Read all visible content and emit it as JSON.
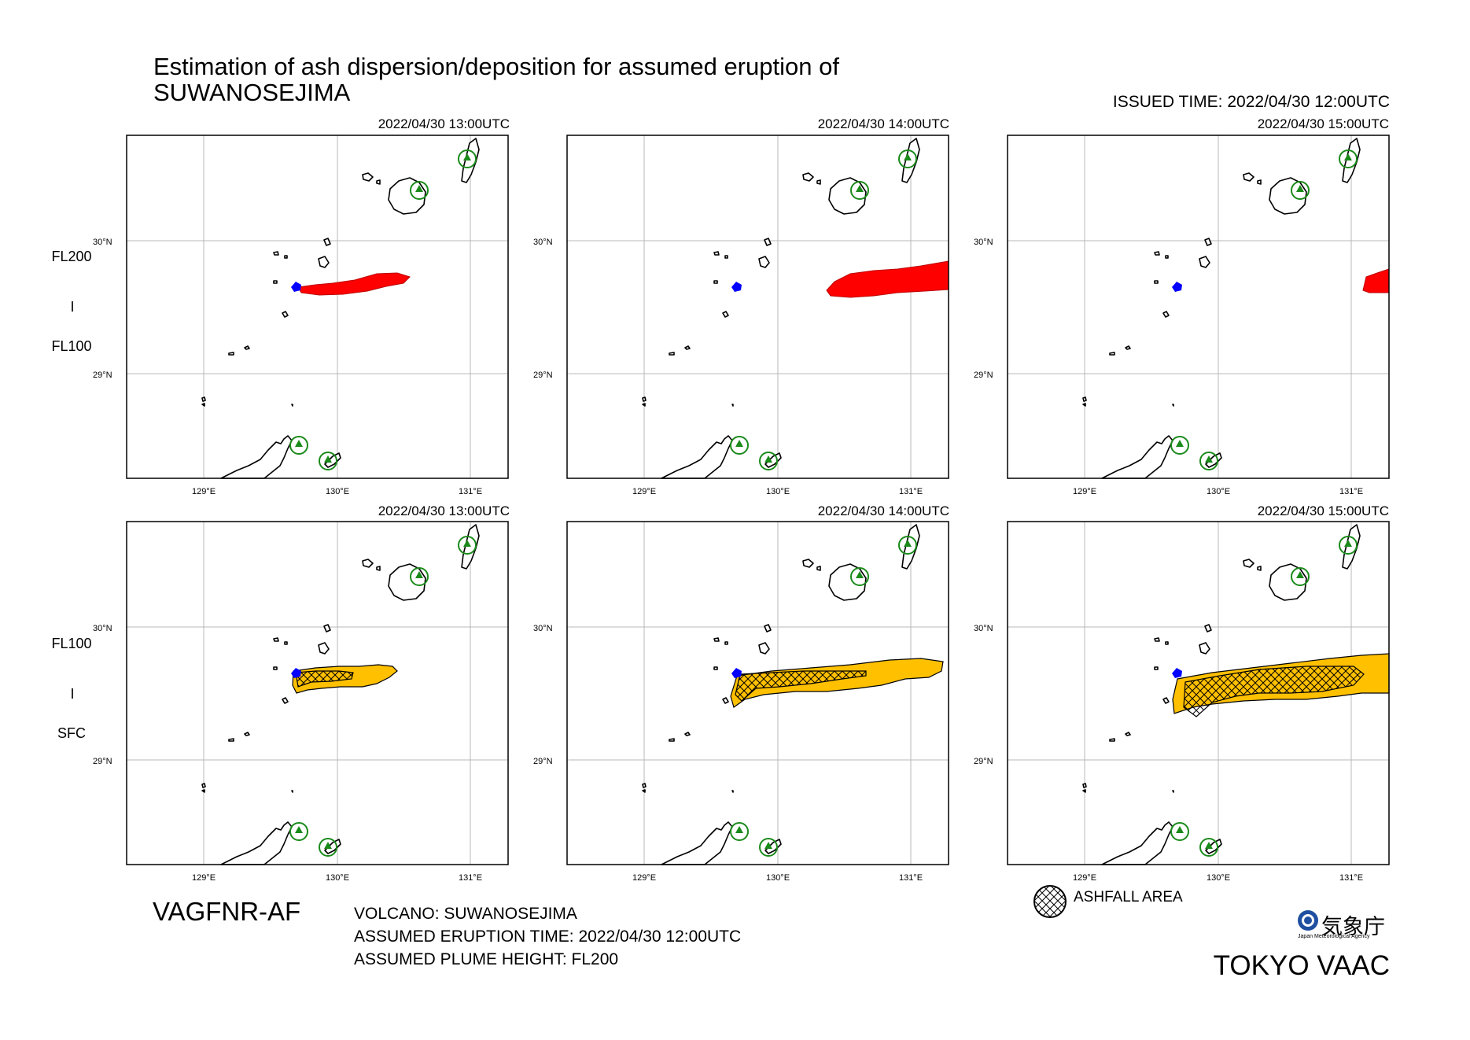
{
  "title": "Estimation of ash dispersion/deposition for assumed eruption of\nSUWANOSEJIMA",
  "issued_time": "ISSUED TIME: 2022/04/30 12:00UTC",
  "map_labels": {
    "lat_30": "30°N",
    "lat_29": "29°N",
    "lon_129": "129°E",
    "lon_130": "130°E",
    "lon_131": "131°E"
  },
  "rows": [
    {
      "top_label": "FL200",
      "sep_label": "I",
      "bottom_label": "FL100",
      "panels": [
        {
          "time": "2022/04/30 13:00UTC",
          "ash_color": "#ff0000",
          "ashfall": false
        },
        {
          "time": "2022/04/30 14:00UTC",
          "ash_color": "#ff0000",
          "ashfall": false
        },
        {
          "time": "2022/04/30 15:00UTC",
          "ash_color": "#ff0000",
          "ashfall": false
        }
      ]
    },
    {
      "top_label": "FL100",
      "sep_label": "I",
      "bottom_label": "SFC",
      "panels": [
        {
          "time": "2022/04/30 13:00UTC",
          "ash_color": "#ffc000",
          "ashfall": true
        },
        {
          "time": "2022/04/30 14:00UTC",
          "ash_color": "#ffc000",
          "ashfall": true
        },
        {
          "time": "2022/04/30 15:00UTC",
          "ash_color": "#ffc000",
          "ashfall": true
        }
      ]
    }
  ],
  "product_code": "VAGFNR-AF",
  "volcano": "VOLCANO: SUWANOSEJIMA",
  "eruption_time": "ASSUMED ERUPTION TIME: 2022/04/30 12:00UTC",
  "plume_height": "ASSUMED PLUME HEIGHT: FL200",
  "legend_label": "ASHFALL AREA",
  "agency_name": "気象庁",
  "agency_english": "Japan Meteorological Agency",
  "vaac": "TOKYO VAAC",
  "colors": {
    "volcano": "#0000ff",
    "other_volcano": "#1a8a1a",
    "plume_upper": "#ff0000",
    "plume_lower": "#ffc000"
  }
}
